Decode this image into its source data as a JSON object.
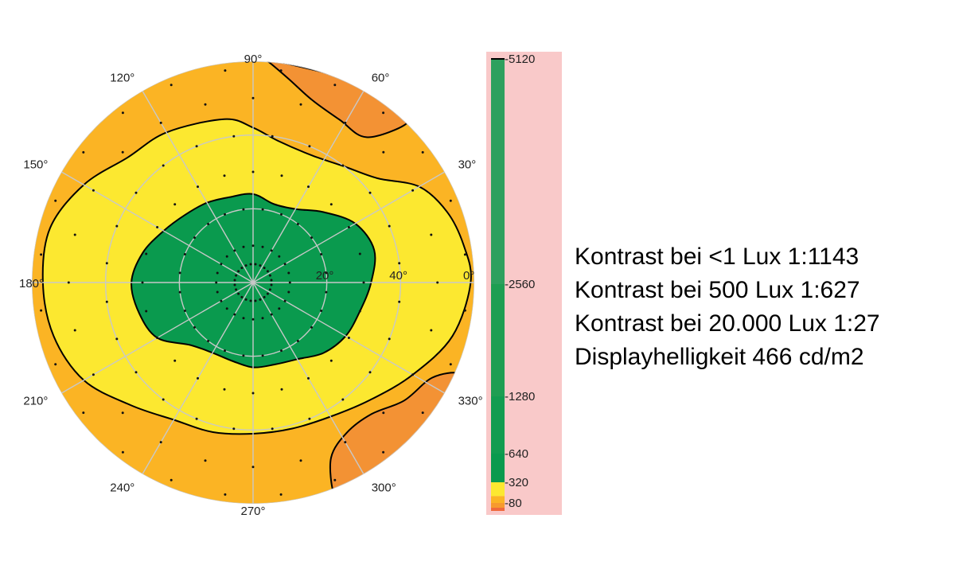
{
  "chart_data": {
    "type": "polar-contour",
    "title": "",
    "angle_labels": [
      {
        "deg": 0,
        "label": "0°"
      },
      {
        "deg": 30,
        "label": "30°"
      },
      {
        "deg": 60,
        "label": "60°"
      },
      {
        "deg": 90,
        "label": "90°"
      },
      {
        "deg": 120,
        "label": "120°"
      },
      {
        "deg": 150,
        "label": "150°"
      },
      {
        "deg": 180,
        "label": "180°"
      },
      {
        "deg": 210,
        "label": "210°"
      },
      {
        "deg": 240,
        "label": "240°"
      },
      {
        "deg": 270,
        "label": "270°"
      },
      {
        "deg": 300,
        "label": "300°"
      },
      {
        "deg": 330,
        "label": "330°"
      }
    ],
    "radial_max": 60,
    "radial_labels": [
      {
        "r": 20,
        "label": "20°"
      },
      {
        "r": 40,
        "label": "40°"
      },
      {
        "r": 60,
        "label": "60°"
      }
    ],
    "colorbar": {
      "min": 0,
      "max": 5120,
      "tick_labels": [
        {
          "value": 5120,
          "label": "-5120"
        },
        {
          "value": 2560,
          "label": "-2560"
        },
        {
          "value": 1280,
          "label": "-1280"
        },
        {
          "value": 640,
          "label": "-640"
        },
        {
          "value": 320,
          "label": "-320"
        },
        {
          "value": 80,
          "label": "-80"
        }
      ],
      "bands": [
        {
          "from": 0,
          "to": 40,
          "color": "#f06a3c"
        },
        {
          "from": 40,
          "to": 80,
          "color": "#f79a2e"
        },
        {
          "from": 80,
          "to": 160,
          "color": "#fbb424"
        },
        {
          "from": 160,
          "to": 320,
          "color": "#fce830"
        },
        {
          "from": 320,
          "to": 640,
          "color": "#0a9a4e"
        },
        {
          "from": 640,
          "to": 1280,
          "color": "#129c50"
        },
        {
          "from": 1280,
          "to": 2560,
          "color": "#1e9e52"
        },
        {
          "from": 2560,
          "to": 5120,
          "color": "#2ea05e"
        }
      ]
    },
    "region_colors": {
      "orange": "#f39234",
      "amber": "#fbb424",
      "yellow": "#fce830",
      "green": "#0a9a4e"
    },
    "contours": {
      "outer_yellow": [
        [
          0,
          59
        ],
        [
          10,
          58
        ],
        [
          20,
          56
        ],
        [
          30,
          52
        ],
        [
          40,
          44
        ],
        [
          52,
          40
        ],
        [
          65,
          38
        ],
        [
          80,
          39
        ],
        [
          90,
          42
        ],
        [
          100,
          45
        ],
        [
          120,
          47
        ],
        [
          135,
          48
        ],
        [
          150,
          53
        ],
        [
          165,
          57
        ],
        [
          180,
          57
        ],
        [
          195,
          56
        ],
        [
          210,
          53
        ],
        [
          225,
          47
        ],
        [
          240,
          43
        ],
        [
          255,
          42
        ],
        [
          270,
          41
        ],
        [
          285,
          41
        ],
        [
          300,
          42
        ],
        [
          315,
          45
        ],
        [
          330,
          50
        ],
        [
          345,
          56
        ]
      ],
      "green_center": [
        [
          0,
          32
        ],
        [
          15,
          34
        ],
        [
          30,
          32
        ],
        [
          45,
          27
        ],
        [
          60,
          23
        ],
        [
          75,
          22
        ],
        [
          90,
          24
        ],
        [
          105,
          24
        ],
        [
          120,
          25
        ],
        [
          135,
          26
        ],
        [
          150,
          28
        ],
        [
          165,
          31
        ],
        [
          180,
          33
        ],
        [
          195,
          32
        ],
        [
          210,
          30
        ],
        [
          225,
          24
        ],
        [
          240,
          22
        ],
        [
          255,
          22
        ],
        [
          270,
          23
        ],
        [
          285,
          23
        ],
        [
          300,
          24
        ],
        [
          315,
          27
        ],
        [
          330,
          29
        ],
        [
          345,
          30
        ]
      ],
      "top_orange": [
        [
          65,
          61
        ],
        [
          60,
          61
        ],
        [
          55,
          61
        ],
        [
          50,
          61
        ],
        [
          46,
          60
        ],
        [
          52,
          50
        ],
        [
          62,
          50
        ],
        [
          72,
          52
        ],
        [
          80,
          56
        ],
        [
          86,
          60
        ],
        [
          88,
          61
        ]
      ],
      "bottom_orange": [
        [
          330,
          61
        ],
        [
          324,
          61
        ],
        [
          318,
          61
        ],
        [
          312,
          61
        ],
        [
          306,
          61
        ],
        [
          300,
          61
        ],
        [
          294,
          61
        ],
        [
          291,
          61
        ],
        [
          294,
          52
        ],
        [
          302,
          48
        ],
        [
          312,
          48
        ],
        [
          322,
          52
        ],
        [
          332,
          55
        ],
        [
          336,
          61
        ]
      ]
    },
    "grid": true,
    "dots": true
  },
  "stats": [
    "Kontrast bei <1 Lux 1:1143",
    "Kontrast bei 500 Lux 1:627",
    "Kontrast bei 20.000 Lux 1:27",
    "Displayhelligkeit 466 cd/m2"
  ]
}
